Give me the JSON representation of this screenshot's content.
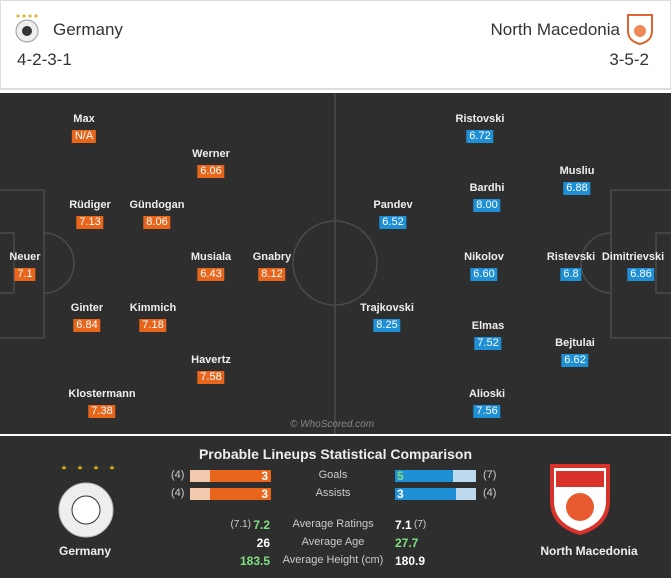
{
  "header": {
    "home": {
      "name": "Germany",
      "formation": "4-2-3-1"
    },
    "away": {
      "name": "North Macedonia",
      "formation": "3-5-2"
    }
  },
  "pitch": {
    "home_players": [
      {
        "name": "Max",
        "rating": "N/A"
      },
      {
        "name": "Werner",
        "rating": 6.06
      },
      {
        "name": "Rüdiger",
        "rating": 7.13
      },
      {
        "name": "Gündogan",
        "rating": 8.06
      },
      {
        "name": "Neuer",
        "rating": 7.1
      },
      {
        "name": "Musiala",
        "rating": 6.43
      },
      {
        "name": "Gnabry",
        "rating": 8.12
      },
      {
        "name": "Ginter",
        "rating": 6.84
      },
      {
        "name": "Kimmich",
        "rating": 7.18
      },
      {
        "name": "Havertz",
        "rating": 7.58
      },
      {
        "name": "Klostermann",
        "rating": 7.38
      }
    ],
    "away_players": [
      {
        "name": "Ristovski",
        "rating": 6.72
      },
      {
        "name": "Musliu",
        "rating": 6.88
      },
      {
        "name": "Bardhi",
        "rating": {
          "value": 8,
          "label": "8.00"
        }
      },
      {
        "name": "Pandev",
        "rating": 6.52
      },
      {
        "name": "Nikolov",
        "rating": {
          "value": 6.6,
          "label": "6.60"
        }
      },
      {
        "name": "Ristevski",
        "rating": 6.8
      },
      {
        "name": "Dimitrievski",
        "rating": 6.86
      },
      {
        "name": "Trajkovski",
        "rating": 8.25
      },
      {
        "name": "Elmas",
        "rating": 7.52
      },
      {
        "name": "Bejtulai",
        "rating": 6.62
      },
      {
        "name": "Alioski",
        "rating": 7.56
      }
    ],
    "watermark": "© WhoScored.com"
  },
  "comparison": {
    "title": "Probable Lineups Statistical Comparison",
    "bars": [
      {
        "label": "Goals",
        "home": 3,
        "home_total": {
          "value": 4,
          "label": "(4)"
        },
        "away": 5,
        "away_total": {
          "value": 7,
          "label": "(7)"
        }
      },
      {
        "label": "Assists",
        "home": 3,
        "home_total": {
          "value": 4,
          "label": "(4)"
        },
        "away": 3,
        "away_total": {
          "value": 4,
          "label": "(4)"
        }
      }
    ],
    "stats": [
      {
        "label": "Average Ratings",
        "home": 7.2,
        "home_note": {
          "value": 7.1,
          "label": "(7.1)"
        },
        "away": 7.1,
        "away_note": {
          "value": 7,
          "label": "(7)"
        }
      },
      {
        "label": "Average Age",
        "home": 26,
        "away": 27.7
      },
      {
        "label": "Average Height (cm)",
        "home": 183.5,
        "away": 180.9
      }
    ],
    "home_name": "Germany",
    "away_name": "North Macedonia"
  }
}
